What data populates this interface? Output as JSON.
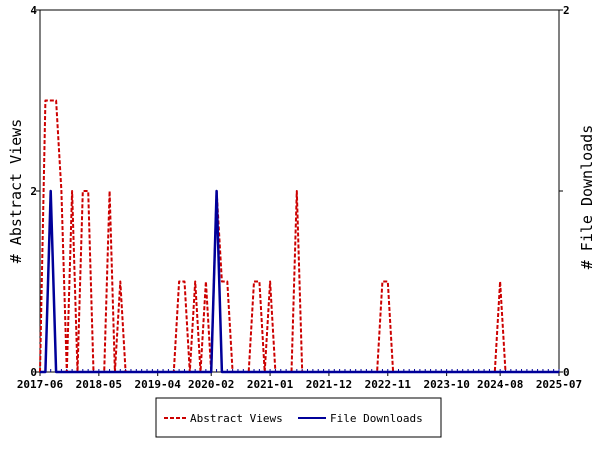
{
  "chart_data": {
    "type": "line",
    "title": "",
    "ylabel_left": "# Abstract Views",
    "ylabel_right": "# File Downloads",
    "ylim_left": [
      0,
      4
    ],
    "ylim_right": [
      0,
      2
    ],
    "yticks_left": [
      "0",
      "2",
      "4"
    ],
    "yticks_right": [
      "0",
      "1",
      "2"
    ],
    "x_range": [
      "2017-06",
      "2025-07"
    ],
    "x_tick_labels": [
      "2017-06",
      "2018-05",
      "2019-04",
      "2020-02",
      "2021-01",
      "2021-12",
      "2022-11",
      "2023-10",
      "2024-08",
      "2025-07"
    ],
    "grid": false,
    "legend_position": "bottom",
    "colors": {
      "abstract_views": "#cc0000",
      "file_downloads": "#000099"
    },
    "series": [
      {
        "name": "Abstract Views",
        "axis": "left",
        "style": "dashed",
        "points": [
          [
            "2017-06",
            0
          ],
          [
            "2017-07",
            3
          ],
          [
            "2017-08",
            3
          ],
          [
            "2017-09",
            3
          ],
          [
            "2017-10",
            2
          ],
          [
            "2017-11",
            0
          ],
          [
            "2017-12",
            2
          ],
          [
            "2018-01",
            0
          ],
          [
            "2018-02",
            2
          ],
          [
            "2018-03",
            2
          ],
          [
            "2018-04",
            0
          ],
          [
            "2018-06",
            0
          ],
          [
            "2018-07",
            2
          ],
          [
            "2018-08",
            0
          ],
          [
            "2018-09",
            1
          ],
          [
            "2018-10",
            0
          ],
          [
            "2019-07",
            0
          ],
          [
            "2019-08",
            1
          ],
          [
            "2019-09",
            1
          ],
          [
            "2019-10",
            0
          ],
          [
            "2019-11",
            1
          ],
          [
            "2019-12",
            0
          ],
          [
            "2020-01",
            1
          ],
          [
            "2020-02",
            0
          ],
          [
            "2020-03",
            2
          ],
          [
            "2020-04",
            1
          ],
          [
            "2020-05",
            1
          ],
          [
            "2020-06",
            0
          ],
          [
            "2020-09",
            0
          ],
          [
            "2020-10",
            1
          ],
          [
            "2020-11",
            1
          ],
          [
            "2020-12",
            0
          ],
          [
            "2021-01",
            1
          ],
          [
            "2021-02",
            0
          ],
          [
            "2021-05",
            0
          ],
          [
            "2021-06",
            2
          ],
          [
            "2021-07",
            0
          ],
          [
            "2022-09",
            0
          ],
          [
            "2022-10",
            1
          ],
          [
            "2022-11",
            1
          ],
          [
            "2022-12",
            0
          ],
          [
            "2024-07",
            0
          ],
          [
            "2024-08",
            1
          ],
          [
            "2024-09",
            0
          ],
          [
            "2025-07",
            0
          ]
        ]
      },
      {
        "name": "File Downloads",
        "axis": "right",
        "style": "solid",
        "points": [
          [
            "2017-06",
            0
          ],
          [
            "2017-07",
            0
          ],
          [
            "2017-08",
            1
          ],
          [
            "2017-09",
            0
          ],
          [
            "2020-02",
            0
          ],
          [
            "2020-03",
            1
          ],
          [
            "2020-04",
            0
          ],
          [
            "2025-07",
            0
          ]
        ]
      }
    ]
  }
}
